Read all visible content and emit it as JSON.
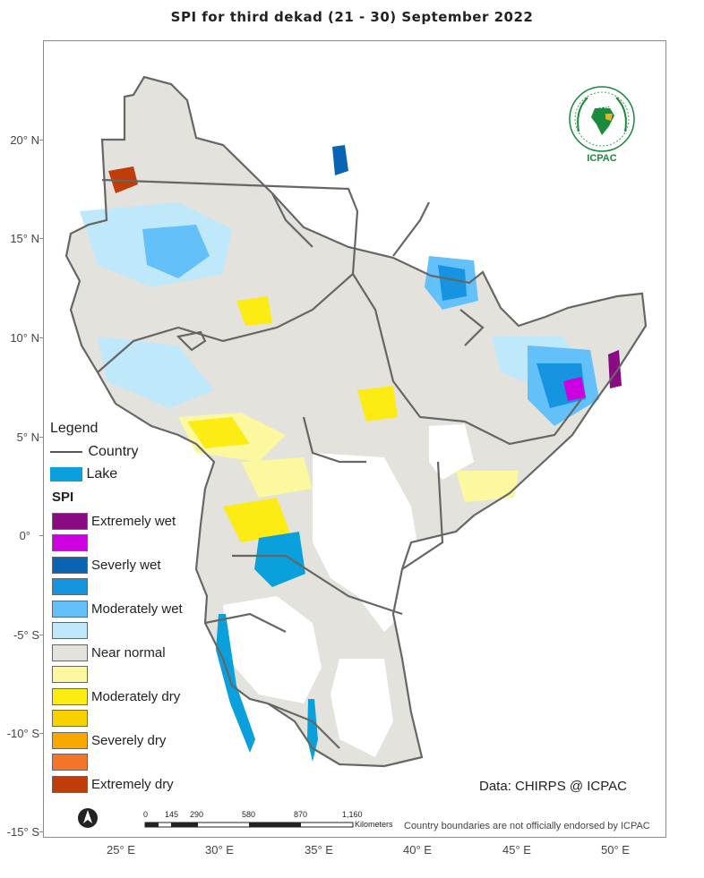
{
  "title": "SPI   for    third  dekad (21 - 30)  September 2022",
  "lat_labels": [
    "20° N",
    "15° N",
    "10° N",
    "5° N",
    "0°",
    "-5° S",
    "-10° S",
    "-15° S"
  ],
  "lon_labels": [
    "25° E",
    "30° E",
    "35° E",
    "40° E",
    "45° E",
    "50° E"
  ],
  "legend": {
    "title": "Legend",
    "country_label": "Country",
    "lake_label": "Lake",
    "lake_color": "#0aa0dc",
    "spi_title": "SPI",
    "classes": [
      {
        "label": "Extremely wet",
        "color": "#8a0a84"
      },
      {
        "label": "",
        "color": "#cc00e0"
      },
      {
        "label": "Severly wet",
        "color": "#0a64b4"
      },
      {
        "label": "",
        "color": "#1694e0"
      },
      {
        "label": "Moderately wet",
        "color": "#64c0f8"
      },
      {
        "label": "",
        "color": "#bfe8fb"
      },
      {
        "label": "Near normal",
        "color": "#e4e2dc"
      },
      {
        "label": "",
        "color": "#fcf8a0"
      },
      {
        "label": "Moderately dry",
        "color": "#fcec14"
      },
      {
        "label": "",
        "color": "#f8d200"
      },
      {
        "label": "Severely dry",
        "color": "#f8a800"
      },
      {
        "label": "",
        "color": "#f47428"
      },
      {
        "label": "Extremely dry",
        "color": "#c03c08"
      }
    ]
  },
  "logo": {
    "top_text": "IGAD",
    "bottom_text": "ICPAC",
    "color": "#1a8a3c"
  },
  "credit": "Data: CHIRPS @ ICPAC",
  "disclaimer": "Country boundaries are not officially endorsed by ICPAC",
  "scalebar": {
    "ticks": [
      "0",
      "145",
      "290",
      "580",
      "870",
      "1,160"
    ],
    "unit": "Kilometers"
  },
  "north_icon": "north-arrow-icon"
}
